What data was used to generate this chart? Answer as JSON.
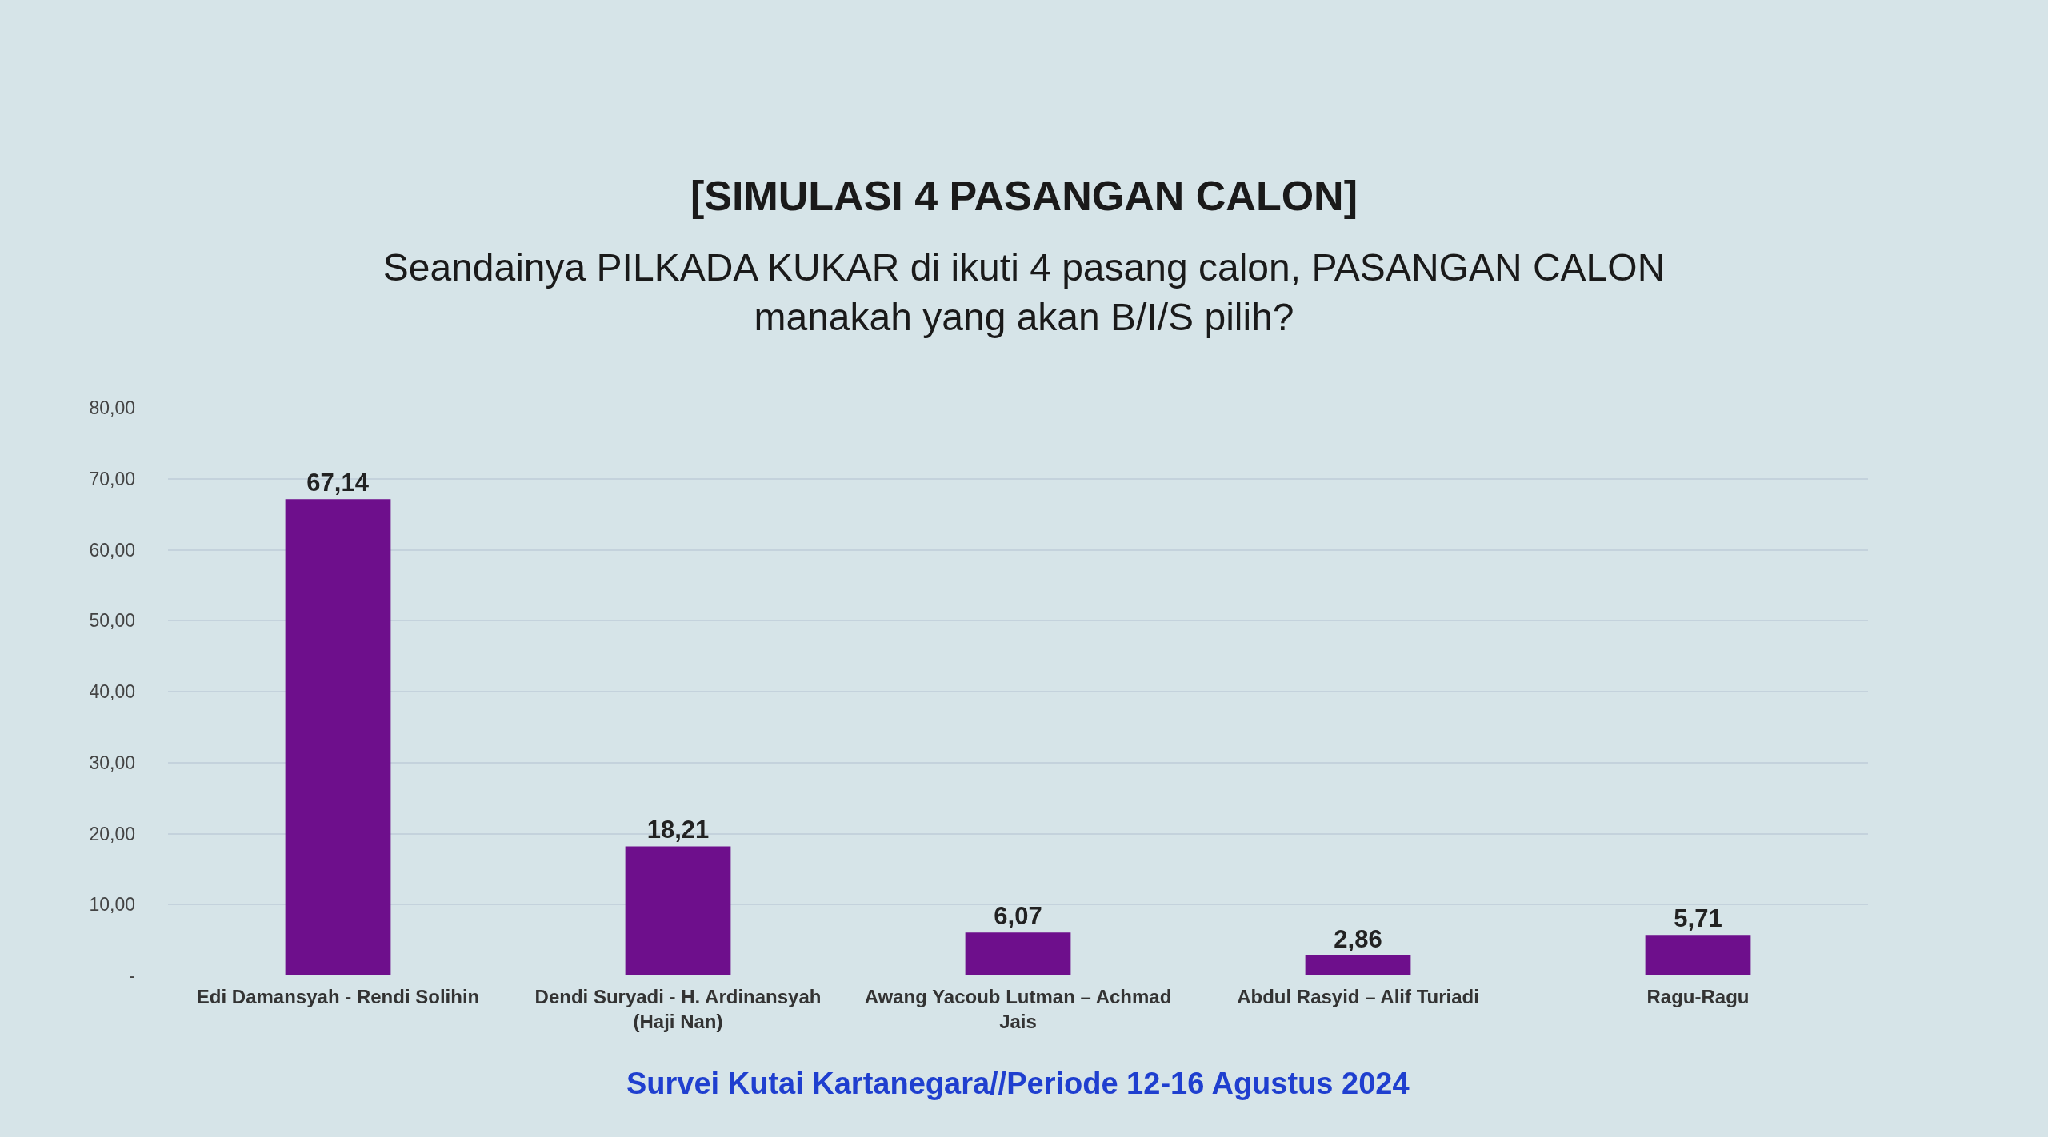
{
  "chart_data": {
    "type": "bar",
    "title": "[SIMULASI 4 PASANGAN CALON]",
    "subtitle": "Seandainya PILKADA KUKAR di ikuti 4 pasang calon, PASANGAN CALON\nmanakah yang akan B/I/S pilih?",
    "categories": [
      "Edi Damansyah - Rendi Solihin",
      "Dendi Suryadi - H. Ardinansyah (Haji Nan)",
      "Awang Yacoub Lutman – Achmad Jais",
      "Abdul Rasyid – Alif Turiadi",
      "Ragu-Ragu"
    ],
    "values": [
      67.14,
      18.21,
      6.07,
      2.86,
      5.71
    ],
    "value_labels": [
      "67,14",
      "18,21",
      "6,07",
      "2,86",
      "5,71"
    ],
    "color": "#6e0f8c",
    "ylim": [
      0,
      80
    ],
    "yticks": [
      {
        "value": 0,
        "label": "-"
      },
      {
        "value": 10,
        "label": "10,00"
      },
      {
        "value": 20,
        "label": "20,00"
      },
      {
        "value": 30,
        "label": "30,00"
      },
      {
        "value": 40,
        "label": "40,00"
      },
      {
        "value": 50,
        "label": "50,00"
      },
      {
        "value": 60,
        "label": "60,00"
      },
      {
        "value": 70,
        "label": "70,00"
      },
      {
        "value": 80,
        "label": "80,00"
      }
    ],
    "grid": "y",
    "annotations": [
      "Survei Kutai Kartanegara//Periode 12-16 Agustus 2024"
    ]
  }
}
